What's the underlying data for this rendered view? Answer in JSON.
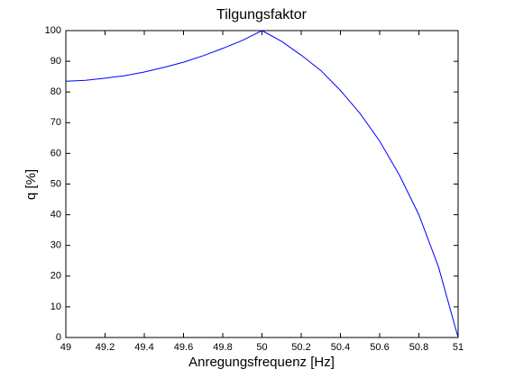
{
  "chart_data": {
    "type": "line",
    "title": "Tilgungsfaktor",
    "x_label": "Anregungsfrequenz [Hz]",
    "y_label": "q [%]",
    "x": [
      49,
      49.1,
      49.2,
      49.3,
      49.4,
      49.5,
      49.6,
      49.7,
      49.8,
      49.9,
      50,
      50.1,
      50.2,
      50.3,
      50.4,
      50.5,
      50.6,
      50.7,
      50.8,
      50.9,
      51
    ],
    "series": [
      {
        "name": "q",
        "color": "#0000ff",
        "values": [
          83.5,
          83.8,
          84.5,
          85.3,
          86.5,
          88,
          89.7,
          91.8,
          94.2,
          96.8,
          100,
          96.5,
          92,
          87,
          80.5,
          73,
          64,
          53,
          40,
          23,
          0
        ]
      }
    ],
    "xlim": [
      49,
      51
    ],
    "xticks": [
      49,
      49.2,
      49.4,
      49.6,
      49.8,
      50,
      50.2,
      50.4,
      50.6,
      50.8,
      51
    ],
    "ylim": [
      0,
      100
    ],
    "yticks": [
      0,
      10,
      20,
      30,
      40,
      50,
      60,
      70,
      80,
      90,
      100
    ]
  }
}
